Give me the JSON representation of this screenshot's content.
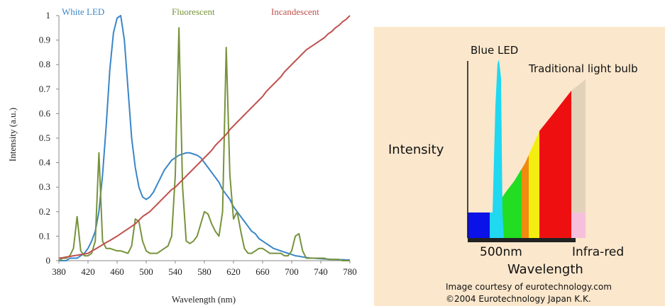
{
  "chart_data": {
    "type": "line",
    "x_label": "Wavelength (nm)",
    "y_label": "Intensity (a.u.)",
    "x": [
      380,
      385,
      390,
      395,
      400,
      405,
      410,
      415,
      420,
      425,
      430,
      435,
      440,
      445,
      450,
      455,
      460,
      465,
      470,
      475,
      480,
      485,
      490,
      495,
      500,
      505,
      510,
      515,
      520,
      525,
      530,
      535,
      540,
      545,
      550,
      555,
      560,
      565,
      570,
      575,
      580,
      585,
      590,
      595,
      600,
      605,
      610,
      615,
      620,
      625,
      630,
      635,
      640,
      645,
      650,
      655,
      660,
      665,
      670,
      675,
      680,
      685,
      690,
      695,
      700,
      705,
      710,
      715,
      720,
      725,
      730,
      735,
      740,
      745,
      750,
      755,
      760,
      765,
      770,
      775,
      780
    ],
    "xlim": [
      380,
      780
    ],
    "xticks": [
      380,
      420,
      460,
      500,
      540,
      580,
      620,
      660,
      700,
      740,
      780
    ],
    "ylim": [
      0,
      1
    ],
    "yticks": [
      0,
      0.1,
      0.2,
      0.3,
      0.4,
      0.5,
      0.6,
      0.7,
      0.8,
      0.9,
      1
    ],
    "series": [
      {
        "name": "White LED",
        "color": "#3a86c8",
        "values": [
          0,
          0,
          0,
          0.01,
          0.01,
          0.01,
          0.02,
          0.03,
          0.05,
          0.08,
          0.12,
          0.2,
          0.35,
          0.55,
          0.78,
          0.93,
          0.99,
          1,
          0.9,
          0.7,
          0.5,
          0.38,
          0.3,
          0.26,
          0.25,
          0.26,
          0.28,
          0.31,
          0.34,
          0.37,
          0.39,
          0.41,
          0.42,
          0.43,
          0.435,
          0.44,
          0.44,
          0.435,
          0.43,
          0.42,
          0.4,
          0.38,
          0.36,
          0.34,
          0.32,
          0.29,
          0.27,
          0.25,
          0.22,
          0.2,
          0.18,
          0.16,
          0.14,
          0.12,
          0.11,
          0.09,
          0.08,
          0.07,
          0.06,
          0.05,
          0.045,
          0.04,
          0.035,
          0.03,
          0.025,
          0.02,
          0.018,
          0.015,
          0.013,
          0.011,
          0.01,
          0.009,
          0.008,
          0.007,
          0.006,
          0.005,
          0.005,
          0.004,
          0.004,
          0.003,
          0.003
        ]
      },
      {
        "name": "Fluorescent",
        "color": "#77933c",
        "values": [
          0,
          0.01,
          0.01,
          0.02,
          0.05,
          0.18,
          0.04,
          0.02,
          0.02,
          0.03,
          0.08,
          0.44,
          0.08,
          0.05,
          0.05,
          0.045,
          0.04,
          0.04,
          0.035,
          0.03,
          0.06,
          0.17,
          0.16,
          0.08,
          0.04,
          0.03,
          0.03,
          0.03,
          0.04,
          0.05,
          0.06,
          0.1,
          0.35,
          0.95,
          0.3,
          0.08,
          0.07,
          0.08,
          0.1,
          0.15,
          0.2,
          0.19,
          0.15,
          0.12,
          0.1,
          0.2,
          0.87,
          0.35,
          0.17,
          0.2,
          0.12,
          0.05,
          0.03,
          0.03,
          0.04,
          0.05,
          0.05,
          0.04,
          0.03,
          0.03,
          0.03,
          0.03,
          0.02,
          0.02,
          0.04,
          0.1,
          0.11,
          0.04,
          0.01,
          0.01,
          0.01,
          0.01,
          0.01,
          0.01,
          0.005,
          0.005,
          0.005,
          0.005,
          0,
          0,
          0
        ]
      },
      {
        "name": "Incandescent",
        "color": "#c0504d",
        "values": [
          0.01,
          0.012,
          0.015,
          0.017,
          0.02,
          0.022,
          0.025,
          0.027,
          0.03,
          0.039,
          0.047,
          0.056,
          0.065,
          0.074,
          0.082,
          0.091,
          0.1,
          0.11,
          0.12,
          0.13,
          0.14,
          0.15,
          0.165,
          0.18,
          0.19,
          0.2,
          0.215,
          0.23,
          0.245,
          0.26,
          0.275,
          0.29,
          0.3,
          0.315,
          0.33,
          0.345,
          0.36,
          0.375,
          0.39,
          0.405,
          0.42,
          0.435,
          0.45,
          0.47,
          0.485,
          0.5,
          0.515,
          0.535,
          0.55,
          0.565,
          0.58,
          0.595,
          0.61,
          0.625,
          0.64,
          0.655,
          0.67,
          0.69,
          0.705,
          0.72,
          0.735,
          0.75,
          0.77,
          0.785,
          0.8,
          0.815,
          0.83,
          0.845,
          0.86,
          0.87,
          0.88,
          0.89,
          0.9,
          0.91,
          0.925,
          0.935,
          0.95,
          0.96,
          0.975,
          0.985,
          1
        ]
      }
    ]
  },
  "illustration": {
    "blue_led": "Blue LED",
    "light_bulb": "Traditional light bulb",
    "y_label": "Intensity",
    "x_start": "500nm",
    "x_end": "Infra-red",
    "x_label": "Wavelength",
    "credits": [
      "Image courtesy of eurotechnology.com",
      "©2004 Eurotechnology Japan K.K."
    ]
  }
}
